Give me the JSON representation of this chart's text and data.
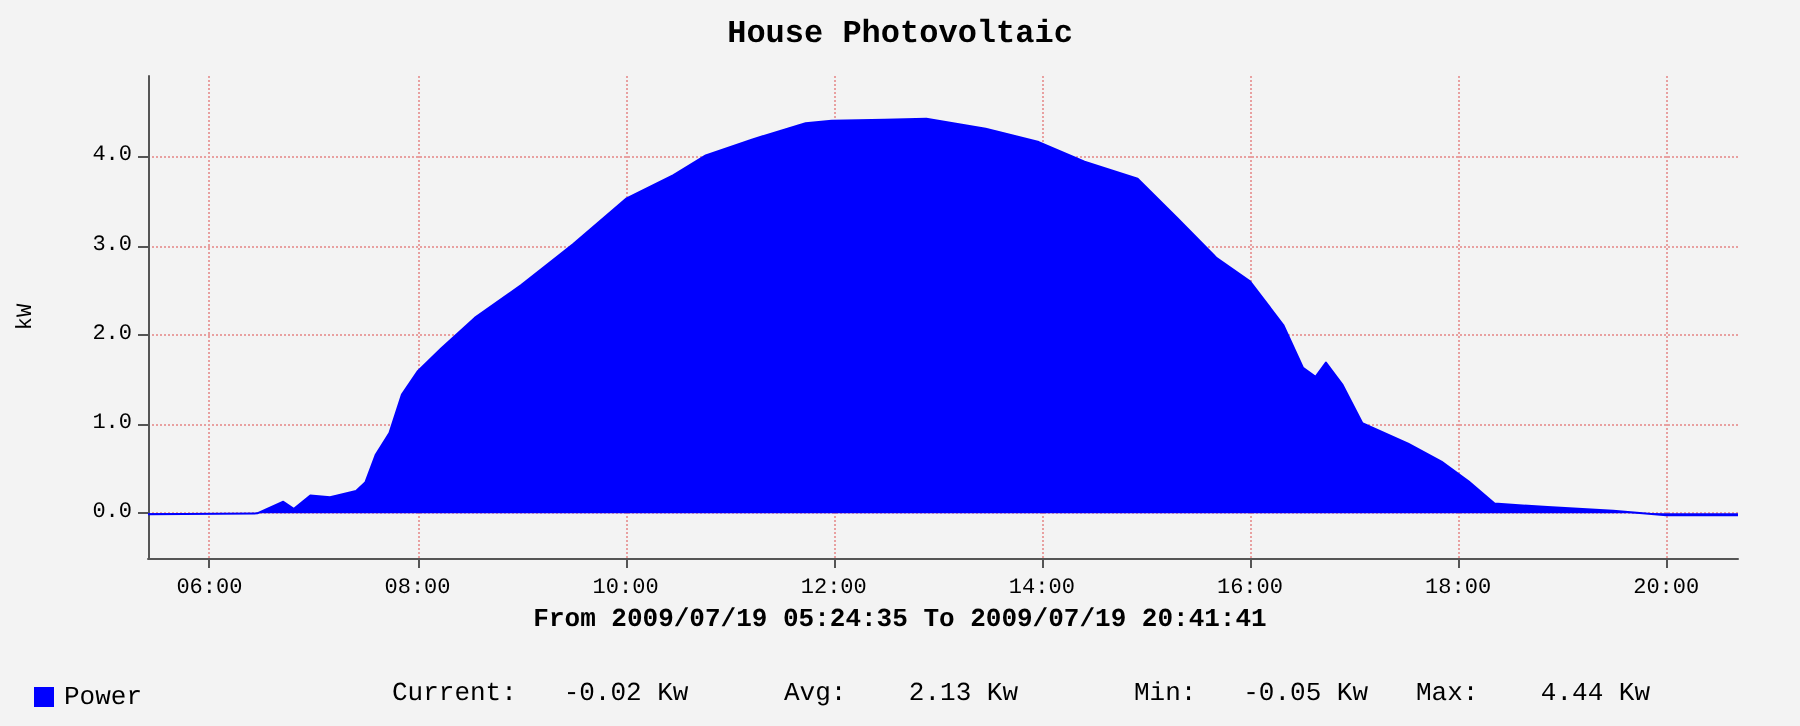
{
  "chart_data": {
    "type": "area",
    "title": "House Photovoltaic",
    "ylabel": "kW",
    "xlabel": "From 2009/07/19 05:24:35 To 2009/07/19 20:41:41",
    "annotations": [
      "Current:   -0.02 Kw",
      "Avg:    2.13 Kw",
      "Min:   -0.05 Kw",
      "Max:    4.44 Kw"
    ],
    "x": [
      5.41,
      6.46,
      6.71,
      6.81,
      6.97,
      7.16,
      7.41,
      7.5,
      7.6,
      7.73,
      7.85,
      8.0,
      8.23,
      8.55,
      9.0,
      9.5,
      10.01,
      10.46,
      10.77,
      11.22,
      11.73,
      11.98,
      12.49,
      12.89,
      13.46,
      13.97,
      14.41,
      14.92,
      15.3,
      15.68,
      16.0,
      16.32,
      16.51,
      16.63,
      16.73,
      16.89,
      17.08,
      17.52,
      17.84,
      18.1,
      18.35,
      18.86,
      19.49,
      20.0,
      20.69
    ],
    "series": [
      {
        "name": "Power",
        "color": "#0000ff",
        "values": [
          -0.01,
          0.0,
          0.13,
          0.05,
          0.2,
          0.18,
          0.25,
          0.35,
          0.66,
          0.9,
          1.33,
          1.59,
          1.85,
          2.19,
          2.56,
          3.02,
          3.53,
          3.79,
          4.01,
          4.19,
          4.37,
          4.4,
          4.41,
          4.42,
          4.31,
          4.16,
          3.94,
          3.75,
          3.31,
          2.86,
          2.6,
          2.11,
          1.63,
          1.53,
          1.69,
          1.44,
          1.01,
          0.78,
          0.58,
          0.36,
          0.11,
          0.07,
          0.03,
          -0.02,
          -0.02
        ]
      }
    ],
    "xlim": [
      5.41,
      20.69
    ],
    "xticks": [
      {
        "value": 6,
        "label": "06:00"
      },
      {
        "value": 8,
        "label": "08:00"
      },
      {
        "value": 10,
        "label": "10:00"
      },
      {
        "value": 12,
        "label": "12:00"
      },
      {
        "value": 14,
        "label": "14:00"
      },
      {
        "value": 16,
        "label": "16:00"
      },
      {
        "value": 18,
        "label": "18:00"
      },
      {
        "value": 20,
        "label": "20:00"
      }
    ],
    "ylim": [
      -0.5,
      4.9
    ],
    "yticks": [
      {
        "value": 0,
        "label": "0.0"
      },
      {
        "value": 1,
        "label": "1.0"
      },
      {
        "value": 2,
        "label": "2.0"
      },
      {
        "value": 3,
        "label": "3.0"
      },
      {
        "value": 4,
        "label": "4.0"
      }
    ],
    "grid": true,
    "legend": "bottom left",
    "marker": "none"
  }
}
